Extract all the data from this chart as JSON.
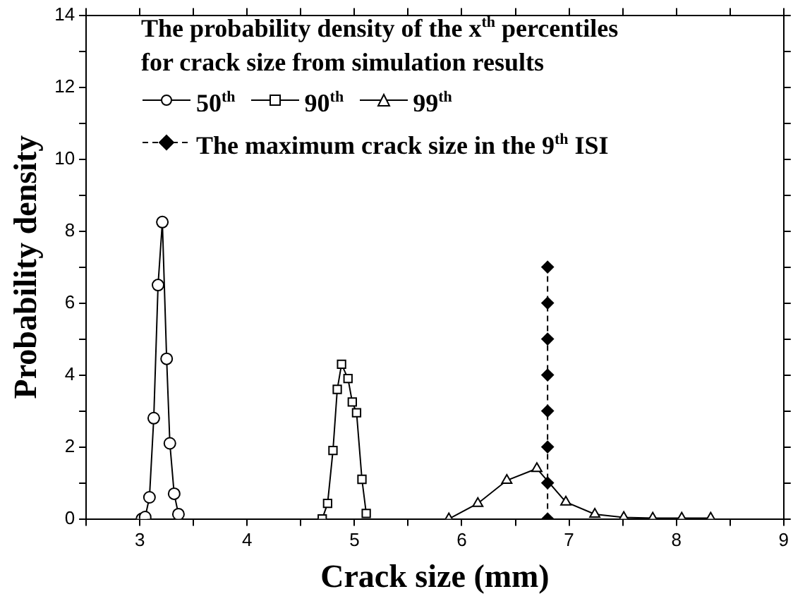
{
  "chart_data": {
    "type": "line",
    "xlabel": "Crack size (mm)",
    "ylabel": "Probability density",
    "legend_title": "The probability density of the x$^{th}$ percentiles for crack size from simulation results",
    "legend": "top",
    "grid": false,
    "xlim": [
      2.5,
      9
    ],
    "xticks": [
      {
        "value": 2.5,
        "label": null
      },
      3,
      {
        "value": 3.5,
        "label": null
      },
      4,
      {
        "value": 4.5,
        "label": null
      },
      5,
      {
        "value": 5.5,
        "label": null
      },
      6,
      {
        "value": 6.5,
        "label": null
      },
      7,
      {
        "value": 7.5,
        "label": null
      },
      8,
      {
        "value": 8.5,
        "label": null
      },
      9
    ],
    "ylim": [
      0,
      14
    ],
    "yticks": [
      0,
      {
        "value": 1,
        "label": null
      },
      2,
      {
        "value": 3,
        "label": null
      },
      4,
      {
        "value": 5,
        "label": null
      },
      6,
      {
        "value": 7,
        "label": null
      },
      8,
      {
        "value": 9,
        "label": null
      },
      10,
      {
        "value": 11,
        "label": null
      },
      12,
      {
        "value": 13,
        "label": null
      },
      14
    ],
    "series": [
      {
        "name": "50$^{th}$",
        "color": "#000000",
        "marker": "circle",
        "line_style": "solid",
        "x": [
          3.02,
          3.05,
          3.09,
          3.13,
          3.17,
          3.21,
          3.25,
          3.28,
          3.32,
          3.36
        ],
        "values": [
          0,
          0.05,
          0.6,
          2.8,
          6.5,
          8.25,
          4.45,
          2.1,
          0.7,
          0.13
        ]
      },
      {
        "name": "90$^{th}$",
        "color": "#000000",
        "marker": "square",
        "line_style": "solid",
        "x": [
          4.7,
          4.75,
          4.8,
          4.84,
          4.88,
          4.94,
          4.98,
          5.02,
          5.07,
          5.11
        ],
        "values": [
          0,
          0.43,
          1.9,
          3.6,
          4.3,
          3.9,
          3.25,
          2.95,
          1.1,
          0.15
        ]
      },
      {
        "name": "99$^{th}$",
        "color": "#000000",
        "marker": "triangle",
        "line_style": "solid",
        "x": [
          5.88,
          6.15,
          6.42,
          6.7,
          6.97,
          7.24,
          7.51,
          7.78,
          8.05,
          8.32
        ],
        "values": [
          0,
          0.43,
          1.07,
          1.4,
          0.47,
          0.13,
          0.04,
          0.02,
          0.02,
          0.02
        ]
      },
      {
        "name": "The maximum crack size in the 9$^{th}$ ISI",
        "color": "#000000",
        "marker": "diamond",
        "line_style": "dashed",
        "x": [
          6.8,
          6.8,
          6.8,
          6.8,
          6.8,
          6.8,
          6.8,
          6.8
        ],
        "values": [
          0,
          1,
          2,
          3,
          4,
          5,
          6,
          7
        ]
      }
    ]
  }
}
